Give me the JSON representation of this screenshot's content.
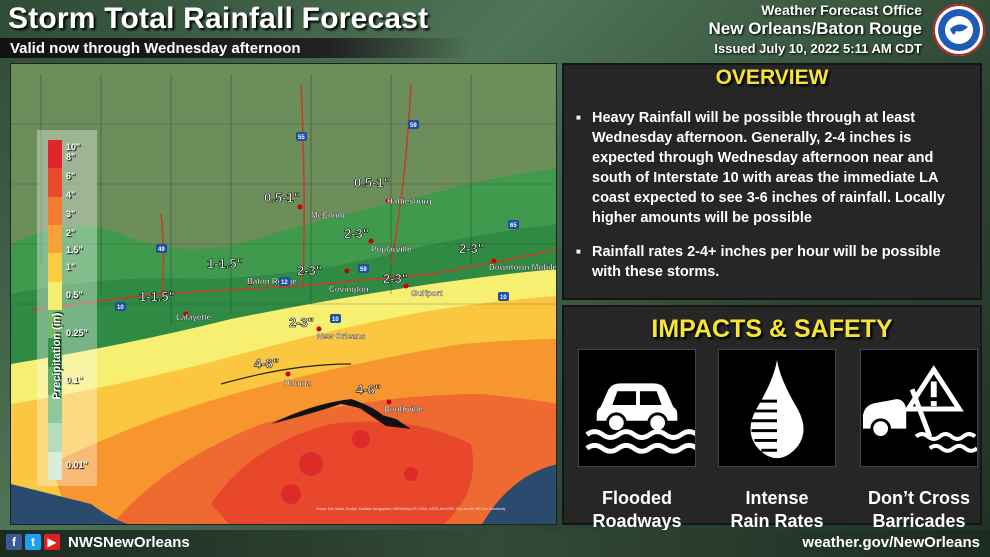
{
  "header": {
    "title": "Storm Total Rainfall Forecast",
    "subtitle": "Valid now through Wednesday afternoon",
    "office_line1": "Weather Forecast Office",
    "office_line2": "New Orleans/Baton Rouge",
    "issued": "Issued July 10, 2022 5:11 AM CDT",
    "logo_icon": "nws-logo-icon"
  },
  "map": {
    "cities": [
      "McComb",
      "Hattiesburg",
      "Poplarville",
      "Covington",
      "Gulfport",
      "Baton Rouge",
      "Lafayette",
      "New Orleans",
      "Houma",
      "Boothville",
      "Downtown Mobile"
    ],
    "rain_labels": [
      "0.5-1\"",
      "0.5-1\"",
      "1-1.5\"",
      "1-1.5\"",
      "2-3\"",
      "2-3\"",
      "2-3\"",
      "2-3\"",
      "2-3\"",
      "4-6\"",
      "4-6\""
    ],
    "shields": [
      "55",
      "59",
      "49",
      "12",
      "10",
      "10",
      "59",
      "65",
      "10"
    ],
    "credits": "Source: Esri, Maxar, GeoEye, Earthstar Geographics, CNES/Airbus DS, USDA, USGS, AeroGRID, IGN, and the GIS User Community"
  },
  "legend": {
    "title": "Precipitation (in)",
    "ticks": [
      "10\"",
      "8\"",
      "6\"",
      "4\"",
      "3\"",
      "2\"",
      "1.5\"",
      "1\"",
      "0.5\"",
      "0.25\"",
      "0.1\"",
      "0.01\""
    ],
    "colors": [
      "#e0262a",
      "#ea4a2c",
      "#f47b32",
      "#f9a137",
      "#fbcb42",
      "#f4ed6f",
      "#7ab86a",
      "#39934a",
      "#62ae6d",
      "#8fc99a",
      "#b7dcb9",
      "#d9ecd7"
    ]
  },
  "overview": {
    "heading": "OVERVIEW",
    "bullet1": "Heavy Rainfall will be possible through at least Wednesday afternoon. Generally, 2-4 inches is expected through Wednesday afternoon near and south of Interstate 10 with areas the immediate LA coast expected to see 3-6 inches of rainfall. Locally higher amounts will be possible",
    "bullet2": "Rainfall rates 2-4+ inches per hour will be possible with these storms."
  },
  "impacts": {
    "heading": "IMPACTS & SAFETY",
    "item1_l1": "Flooded",
    "item1_l2": "Roadways",
    "item1_icon": "flooded-car-icon",
    "item2_l1": "Intense",
    "item2_l2": "Rain Rates",
    "item2_icon": "rain-drop-icon",
    "item3_l1": "Don’t Cross",
    "item3_l2": "Barricades",
    "item3_icon": "barricade-warning-icon"
  },
  "footer": {
    "handle": "NWSNewOrleans",
    "website": "weather.gov/NewOrleans",
    "facebook_icon": "facebook-icon",
    "twitter_icon": "twitter-icon",
    "youtube_icon": "youtube-icon"
  }
}
